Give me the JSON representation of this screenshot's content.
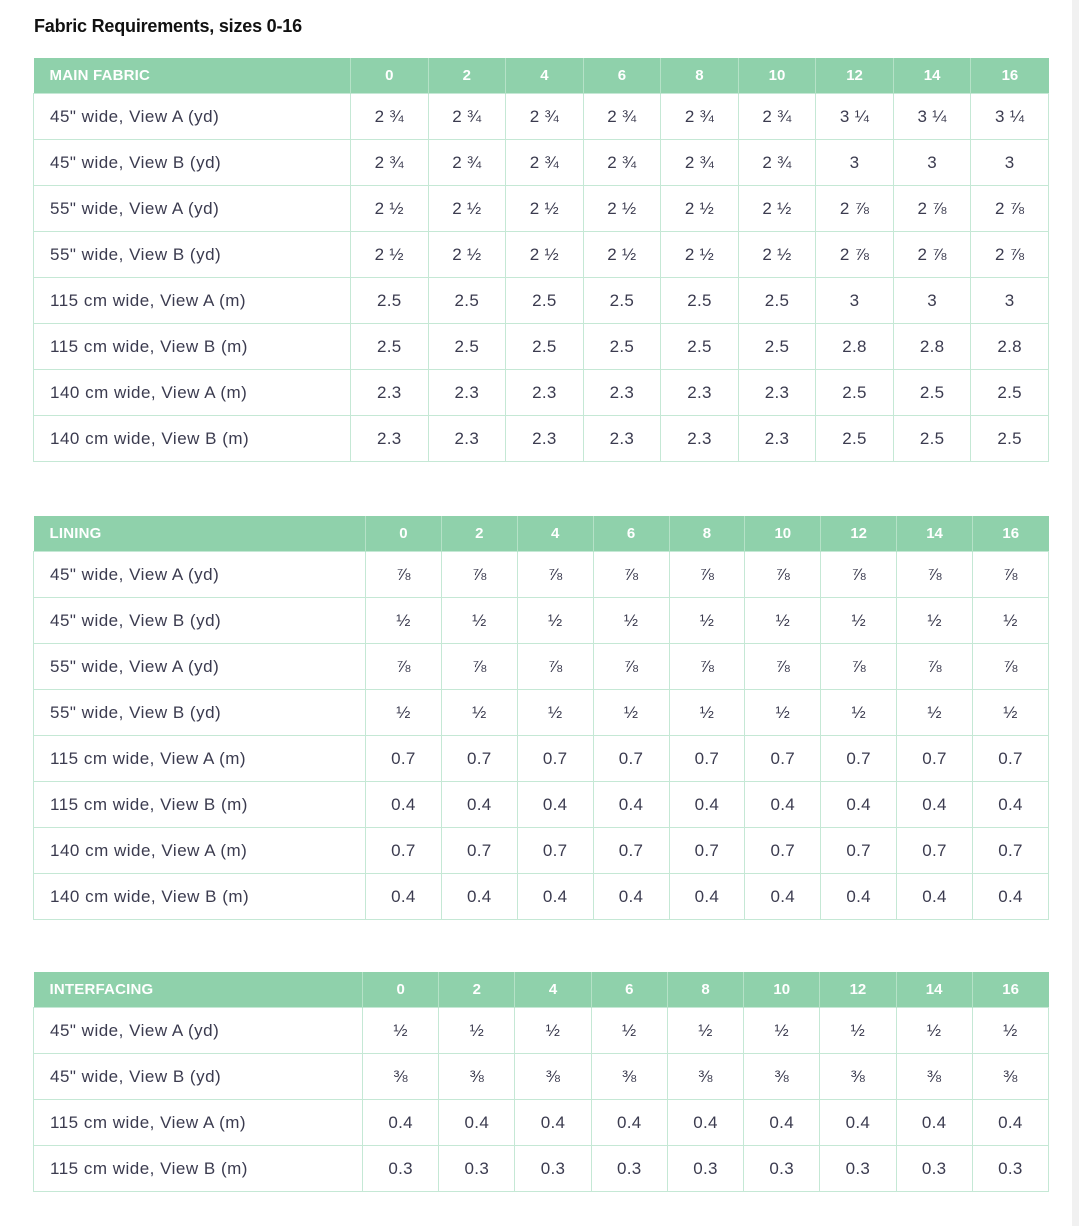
{
  "title": "Fabric Requirements, sizes 0-16",
  "sizes": [
    "0",
    "2",
    "4",
    "6",
    "8",
    "10",
    "12",
    "14",
    "16"
  ],
  "tables": [
    {
      "id": "main",
      "heading": "MAIN FABRIC",
      "rows": [
        {
          "label": "45\" wide, View A (yd)",
          "values": [
            "2 ¾",
            "2 ¾",
            "2 ¾",
            "2 ¾",
            "2 ¾",
            "2 ¾",
            "3 ¼",
            "3 ¼",
            "3 ¼"
          ]
        },
        {
          "label": "45\" wide, View B (yd)",
          "values": [
            "2 ¾",
            "2 ¾",
            "2 ¾",
            "2 ¾",
            "2 ¾",
            "2 ¾",
            "3",
            "3",
            "3"
          ]
        },
        {
          "label": "55\" wide, View A (yd)",
          "values": [
            "2 ½",
            "2 ½",
            "2 ½",
            "2 ½",
            "2 ½",
            "2 ½",
            "2 ⅞",
            "2 ⅞",
            "2 ⅞"
          ]
        },
        {
          "label": "55\" wide, View B (yd)",
          "values": [
            "2 ½",
            "2 ½",
            "2 ½",
            "2 ½",
            "2 ½",
            "2 ½",
            "2 ⅞",
            "2 ⅞",
            "2 ⅞"
          ]
        },
        {
          "label": "115 cm wide, View A (m)",
          "values": [
            "2.5",
            "2.5",
            "2.5",
            "2.5",
            "2.5",
            "2.5",
            "3",
            "3",
            "3"
          ]
        },
        {
          "label": "115 cm wide, View B (m)",
          "values": [
            "2.5",
            "2.5",
            "2.5",
            "2.5",
            "2.5",
            "2.5",
            "2.8",
            "2.8",
            "2.8"
          ]
        },
        {
          "label": "140 cm wide, View A (m)",
          "values": [
            "2.3",
            "2.3",
            "2.3",
            "2.3",
            "2.3",
            "2.3",
            "2.5",
            "2.5",
            "2.5"
          ]
        },
        {
          "label": "140 cm wide, View B (m)",
          "values": [
            "2.3",
            "2.3",
            "2.3",
            "2.3",
            "2.3",
            "2.3",
            "2.5",
            "2.5",
            "2.5"
          ]
        }
      ]
    },
    {
      "id": "lining",
      "heading": "LINING",
      "rows": [
        {
          "label": "45\" wide, View A (yd)",
          "values": [
            "⅞",
            "⅞",
            "⅞",
            "⅞",
            "⅞",
            "⅞",
            "⅞",
            "⅞",
            "⅞"
          ]
        },
        {
          "label": "45\" wide, View B (yd)",
          "values": [
            "½",
            "½",
            "½",
            "½",
            "½",
            "½",
            "½",
            "½",
            "½"
          ]
        },
        {
          "label": "55\" wide, View A (yd)",
          "values": [
            "⅞",
            "⅞",
            "⅞",
            "⅞",
            "⅞",
            "⅞",
            "⅞",
            "⅞",
            "⅞"
          ]
        },
        {
          "label": "55\" wide, View B (yd)",
          "values": [
            "½",
            "½",
            "½",
            "½",
            "½",
            "½",
            "½",
            "½",
            "½"
          ]
        },
        {
          "label": "115 cm wide, View A (m)",
          "values": [
            "0.7",
            "0.7",
            "0.7",
            "0.7",
            "0.7",
            "0.7",
            "0.7",
            "0.7",
            "0.7"
          ]
        },
        {
          "label": "115 cm wide, View B (m)",
          "values": [
            "0.4",
            "0.4",
            "0.4",
            "0.4",
            "0.4",
            "0.4",
            "0.4",
            "0.4",
            "0.4"
          ]
        },
        {
          "label": "140 cm wide, View A (m)",
          "values": [
            "0.7",
            "0.7",
            "0.7",
            "0.7",
            "0.7",
            "0.7",
            "0.7",
            "0.7",
            "0.7"
          ]
        },
        {
          "label": "140 cm wide, View B (m)",
          "values": [
            "0.4",
            "0.4",
            "0.4",
            "0.4",
            "0.4",
            "0.4",
            "0.4",
            "0.4",
            "0.4"
          ]
        }
      ]
    },
    {
      "id": "interfacing",
      "heading": "INTERFACING",
      "rows": [
        {
          "label": "45\" wide, View A (yd)",
          "values": [
            "½",
            "½",
            "½",
            "½",
            "½",
            "½",
            "½",
            "½",
            "½"
          ]
        },
        {
          "label": "45\" wide, View B (yd)",
          "values": [
            "⅜",
            "⅜",
            "⅜",
            "⅜",
            "⅜",
            "⅜",
            "⅜",
            "⅜",
            "⅜"
          ]
        },
        {
          "label": "115 cm wide, View A (m)",
          "values": [
            "0.4",
            "0.4",
            "0.4",
            "0.4",
            "0.4",
            "0.4",
            "0.4",
            "0.4",
            "0.4"
          ]
        },
        {
          "label": "115 cm wide, View B (m)",
          "values": [
            "0.3",
            "0.3",
            "0.3",
            "0.3",
            "0.3",
            "0.3",
            "0.3",
            "0.3",
            "0.3"
          ]
        }
      ]
    }
  ],
  "colors": {
    "header_bg": "#8fd1ab",
    "header_text": "#ffffff",
    "cell_border": "#c5e8d5",
    "cell_text": "#3b3b4f",
    "title_text": "#111111"
  }
}
